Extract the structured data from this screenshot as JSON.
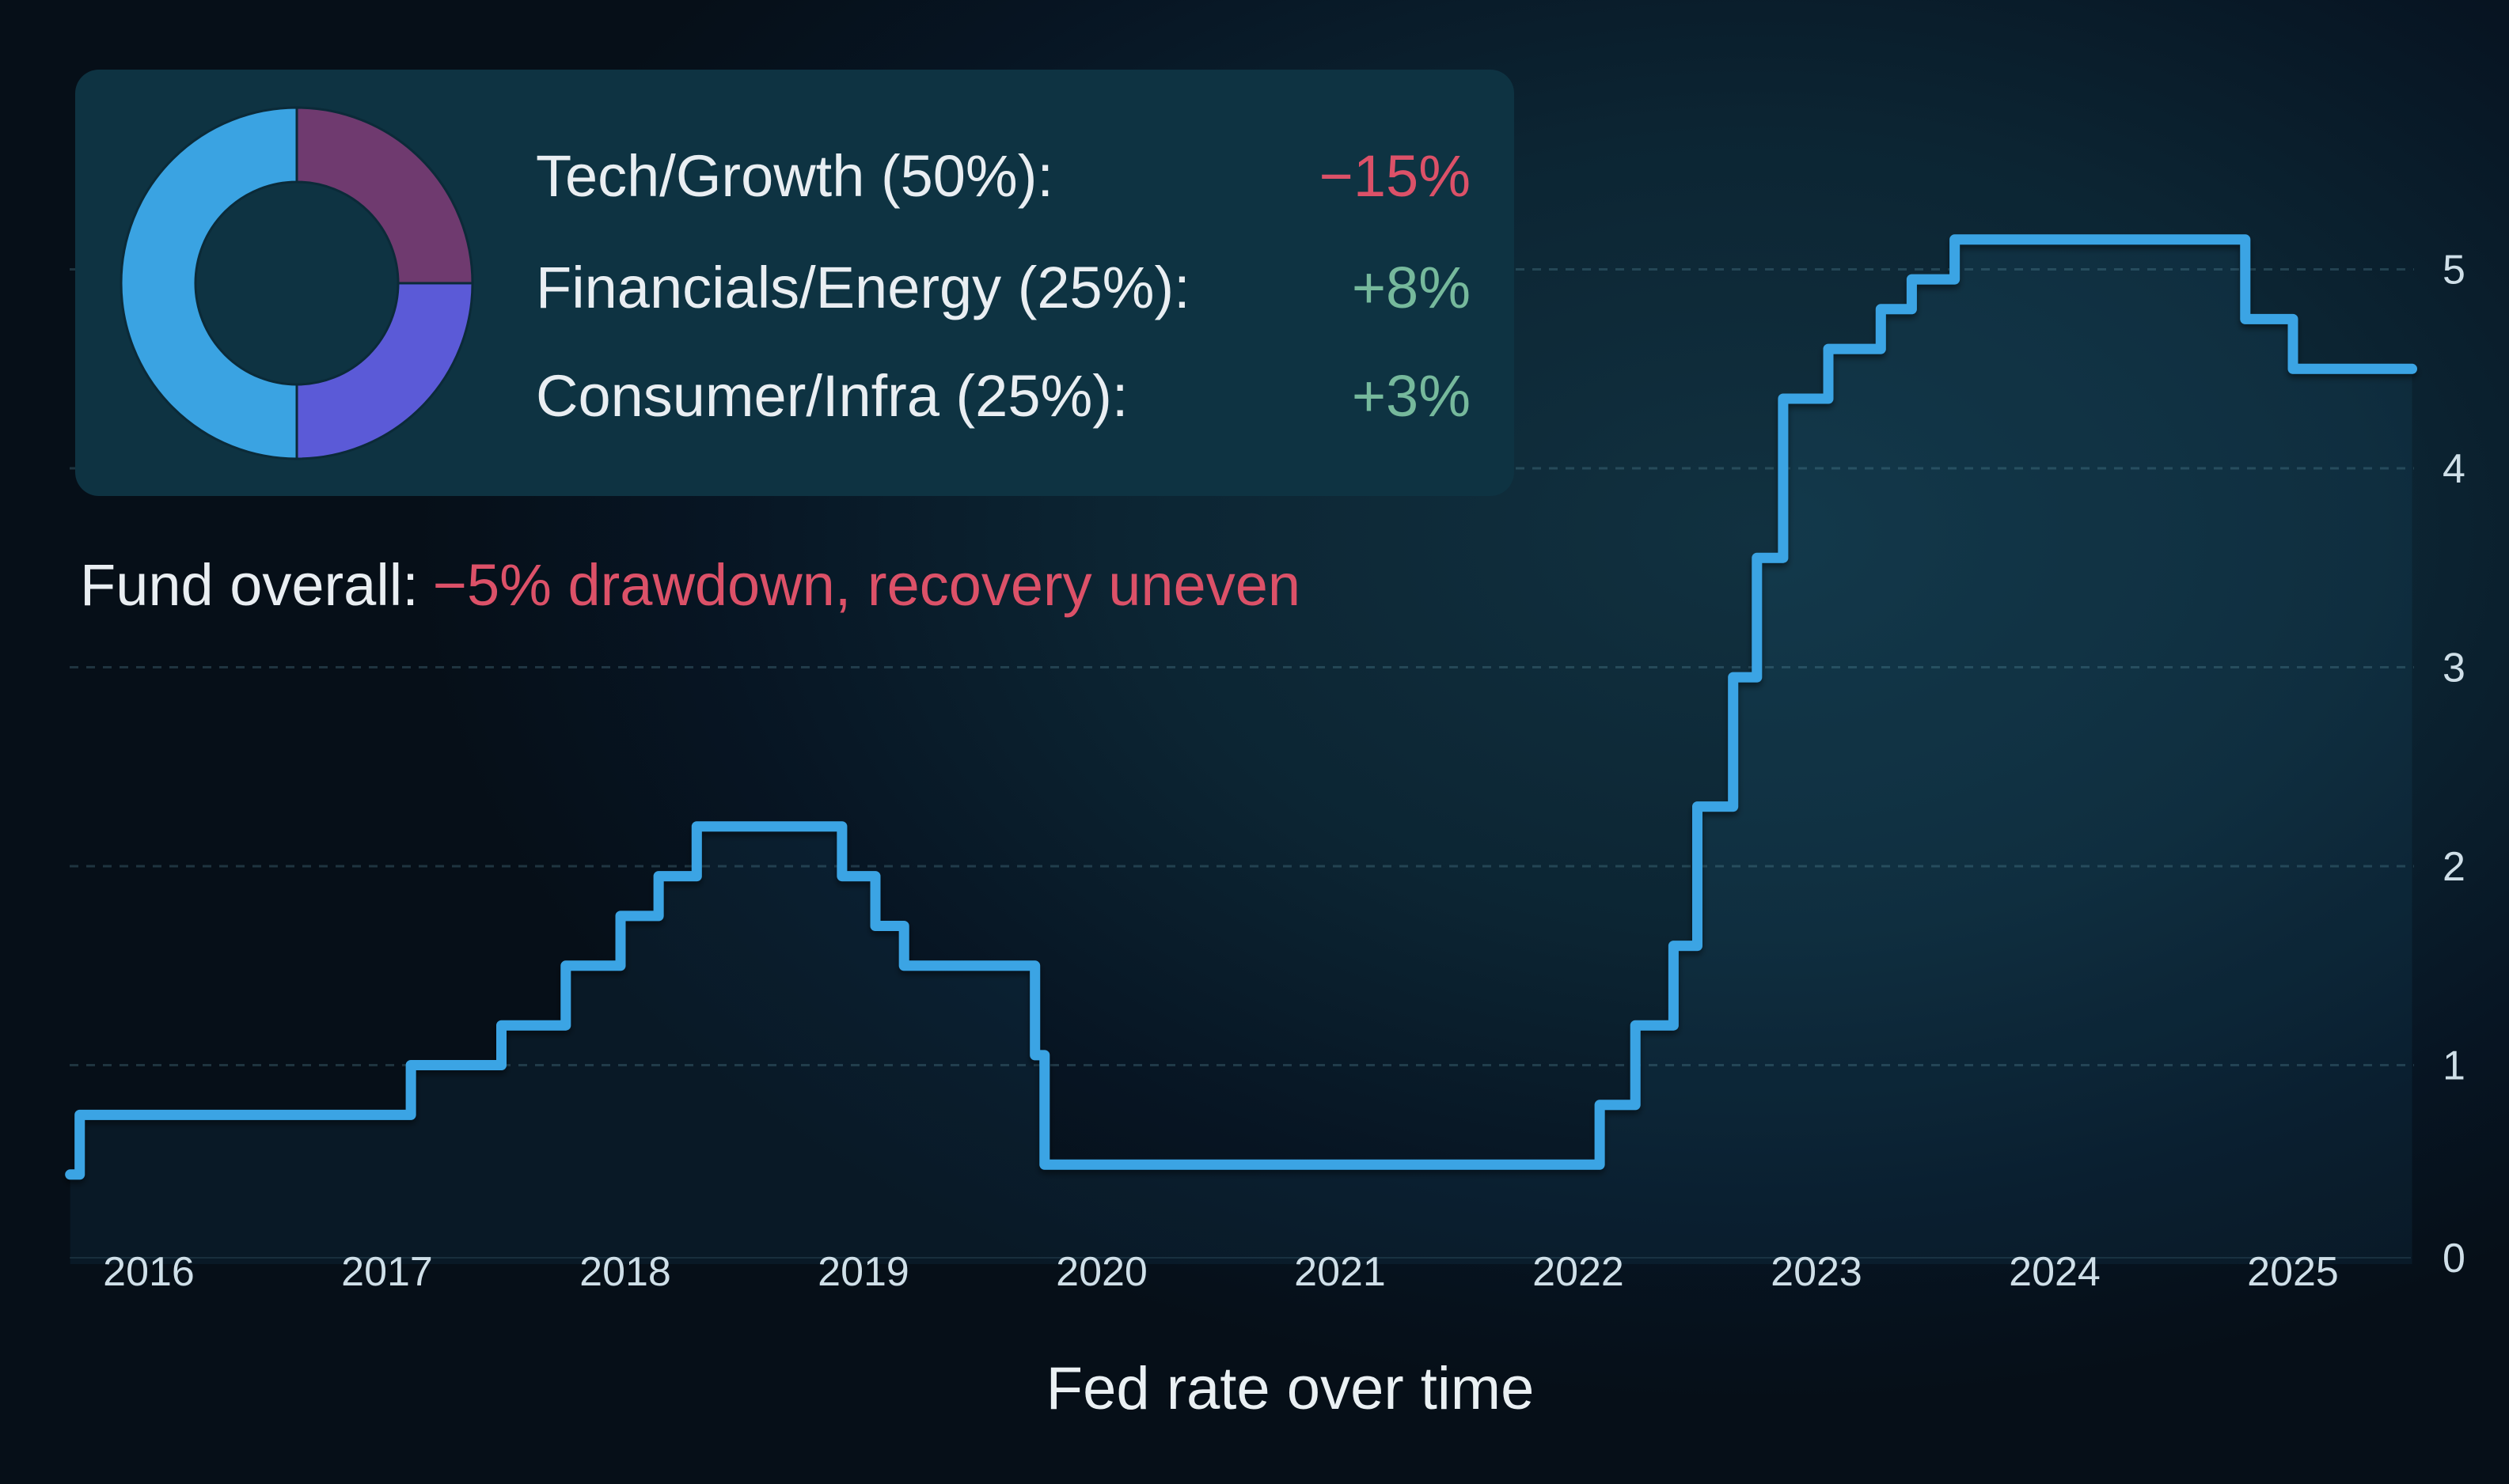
{
  "colors": {
    "line_blue": "#3aa4e4",
    "area_fill": "rgba(61,166,228,0.07)",
    "negative_red": "#dc5168",
    "positive_green": "#76b99c",
    "panel_bg": "#0e3342",
    "slice_stroke": "#0b2a38"
  },
  "panel": {
    "donut": {
      "segments": [
        {
          "name": "Tech/Growth",
          "pct": 50,
          "color": "#3aa3e2"
        },
        {
          "name": "Financials/Energy",
          "pct": 25,
          "color": "#6f3a6f"
        },
        {
          "name": "Consumer/Infra",
          "pct": 25,
          "color": "#5b5ad7"
        }
      ],
      "inner_radius_ratio": 0.575,
      "clockwise_from_top_order": [
        "Financials/Energy",
        "Consumer/Infra",
        "Tech/Growth"
      ]
    },
    "rows": [
      {
        "label": "Tech/Growth (50%):",
        "value": "−15%",
        "value_color": "#dc5168"
      },
      {
        "label": "Financials/Energy (25%):",
        "value": "+8%",
        "value_color": "#76b99c"
      },
      {
        "label": "Consumer/Infra (25%):",
        "value": "+3%",
        "value_color": "#76b99c"
      }
    ]
  },
  "callout": {
    "prefix": "Fund overall:",
    "highlight": "−5% drawdown, recovery uneven",
    "highlight_color": "#dc5168"
  },
  "chart_data": {
    "type": "line",
    "subtype": "step-after",
    "title": "Fed rate over time",
    "xlabel": "",
    "ylabel": "",
    "x_ticks": [
      2016,
      2017,
      2018,
      2019,
      2020,
      2021,
      2022,
      2023,
      2024,
      2025
    ],
    "y_ticks": [
      0,
      1,
      2,
      3,
      4,
      5
    ],
    "xlim": [
      2015.62,
      2025.62
    ],
    "ylim": [
      0,
      5.65
    ],
    "grid": "dotted horizontal, y-axis labels on right side",
    "legend_position": "none",
    "series": [
      {
        "name": "Fed rate",
        "color": "#3aa4e4",
        "steps_year_value": [
          [
            2015.67,
            0.45
          ],
          [
            2015.71,
            0.75
          ],
          [
            2017.1,
            1.0
          ],
          [
            2017.48,
            1.2
          ],
          [
            2017.75,
            1.5
          ],
          [
            2017.98,
            1.75
          ],
          [
            2018.14,
            1.95
          ],
          [
            2018.3,
            2.2
          ],
          [
            2018.91,
            1.95
          ],
          [
            2019.05,
            1.7
          ],
          [
            2019.17,
            1.5
          ],
          [
            2019.72,
            1.05
          ],
          [
            2019.76,
            0.5
          ],
          [
            2022.09,
            0.8
          ],
          [
            2022.24,
            1.2
          ],
          [
            2022.4,
            1.6
          ],
          [
            2022.5,
            2.3
          ],
          [
            2022.65,
            2.95
          ],
          [
            2022.75,
            3.55
          ],
          [
            2022.86,
            4.35
          ],
          [
            2023.05,
            4.6
          ],
          [
            2023.27,
            4.8
          ],
          [
            2023.4,
            4.95
          ],
          [
            2023.58,
            5.15
          ],
          [
            2024.8,
            4.75
          ],
          [
            2025.0,
            4.5
          ],
          [
            2025.5,
            4.5
          ]
        ]
      }
    ]
  }
}
